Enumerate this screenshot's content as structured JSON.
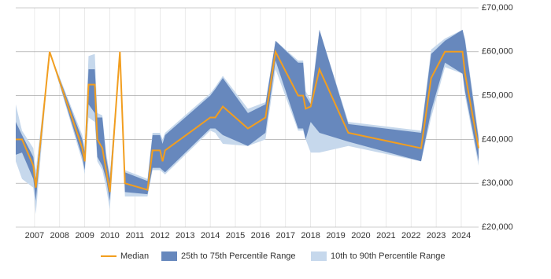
{
  "chart_data": {
    "type": "line",
    "x": [
      2006.25,
      2006.5,
      2006.95,
      2007.05,
      2007.6,
      2008.9,
      2009.0,
      2009.15,
      2009.4,
      2009.5,
      2009.7,
      2009.85,
      2010.0,
      2010.4,
      2010.6,
      2011.5,
      2011.7,
      2012.0,
      2012.1,
      2012.2,
      2014.0,
      2014.2,
      2014.5,
      2015.5,
      2016.2,
      2016.6,
      2017.5,
      2017.7,
      2017.8,
      2018.0,
      2018.35,
      2019.5,
      2022.4,
      2022.8,
      2023.35,
      2024.05,
      2024.15,
      2024.69
    ],
    "series": [
      {
        "name": "10th to 90th Percentile Range",
        "color": "#c6d8ec",
        "low": [
          35000,
          31000,
          29000,
          23000,
          60000,
          35000,
          32000,
          45000,
          44000,
          35000,
          33000,
          29000,
          24000,
          60000,
          27000,
          27000,
          33000,
          33000,
          32500,
          32000,
          42000,
          41500,
          39000,
          38500,
          40000,
          56000,
          42000,
          42000,
          40000,
          37000,
          37000,
          38500,
          35000,
          45000,
          56500,
          55000,
          50000,
          34000
        ],
        "high": [
          48000,
          42000,
          38000,
          33000,
          60000,
          41000,
          38000,
          59000,
          59500,
          46000,
          45500,
          37000,
          32000,
          60000,
          33000,
          31000,
          41500,
          41500,
          40000,
          41500,
          50500,
          52000,
          54500,
          47000,
          48500,
          62500,
          58000,
          58000,
          51000,
          49000,
          65000,
          44000,
          42000,
          60500,
          63000,
          65000,
          63000,
          41000
        ]
      },
      {
        "name": "25th to 75th Percentile Range",
        "color": "#6788bd",
        "low": [
          36500,
          37000,
          31000,
          26000,
          60000,
          36000,
          33000,
          48000,
          46000,
          36000,
          34000,
          31000,
          26000,
          60000,
          28000,
          27500,
          33500,
          33500,
          33000,
          32500,
          42500,
          42500,
          41000,
          38500,
          41500,
          58000,
          42500,
          42500,
          40000,
          44000,
          41500,
          39500,
          35000,
          46500,
          57500,
          55000,
          51000,
          35000
        ],
        "high": [
          44000,
          41000,
          36000,
          31000,
          60000,
          40000,
          37000,
          56000,
          56000,
          45000,
          45000,
          36000,
          31000,
          60000,
          32500,
          30500,
          41000,
          41000,
          39000,
          41000,
          50000,
          51500,
          54000,
          46000,
          48000,
          62500,
          57500,
          57500,
          50000,
          48000,
          65000,
          43500,
          41500,
          59500,
          62500,
          65000,
          62500,
          40000
        ]
      },
      {
        "name": "Median",
        "color": "#f29e1f",
        "values": [
          40000,
          40000,
          34000,
          29000,
          60000,
          38000,
          35000,
          52500,
          52500,
          40000,
          38000,
          33000,
          28000,
          60000,
          30000,
          28500,
          37500,
          37500,
          35000,
          37500,
          45000,
          45000,
          47500,
          42500,
          45000,
          60000,
          50000,
          50000,
          47000,
          47500,
          56000,
          41500,
          38000,
          54000,
          60000,
          60000,
          55000,
          38000
        ]
      }
    ],
    "xlim": [
      2006.25,
      2024.69
    ],
    "xticks": [
      2007,
      2008,
      2009,
      2010,
      2011,
      2012,
      2013,
      2014,
      2015,
      2016,
      2017,
      2018,
      2019,
      2020,
      2021,
      2022,
      2023,
      2024
    ],
    "ylim": [
      20000,
      70000
    ],
    "yticks": [
      {
        "value": 20000,
        "label": "£20,000"
      },
      {
        "value": 30000,
        "label": "£30,000"
      },
      {
        "value": 40000,
        "label": "£40,000"
      },
      {
        "value": 50000,
        "label": "£50,000"
      },
      {
        "value": 60000,
        "label": "£60,000"
      },
      {
        "value": 70000,
        "label": "£70,000"
      }
    ],
    "grid": true,
    "legend": "bottom"
  }
}
